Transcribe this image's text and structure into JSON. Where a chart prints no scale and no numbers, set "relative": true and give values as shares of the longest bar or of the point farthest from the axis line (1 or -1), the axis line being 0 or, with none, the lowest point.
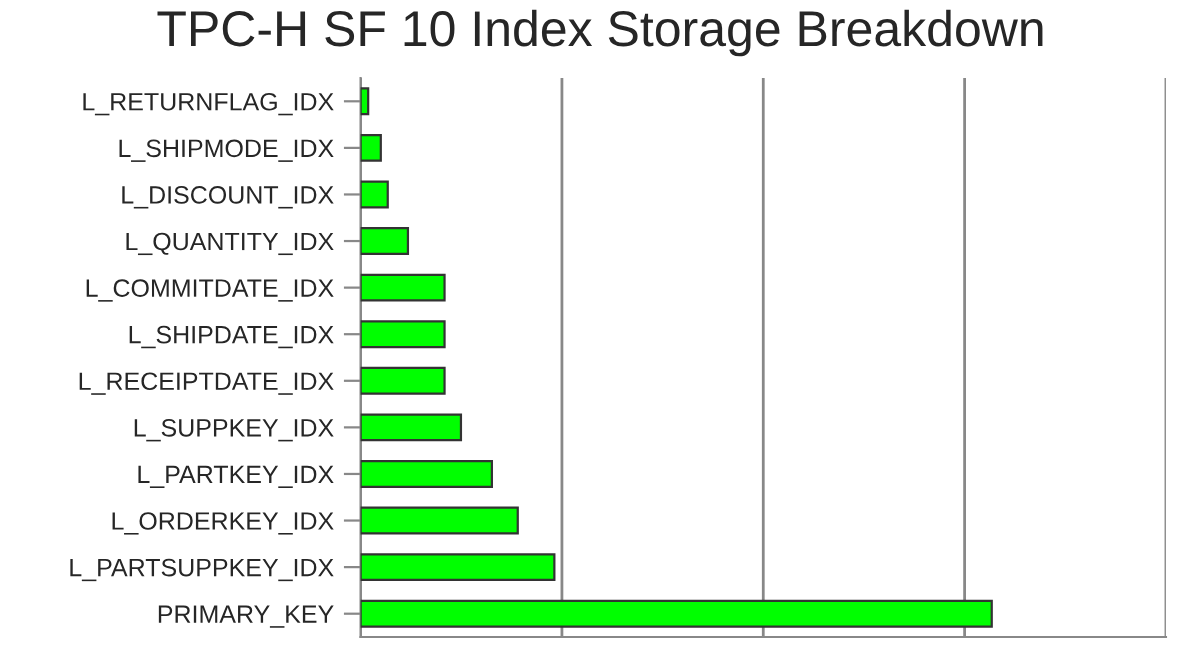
{
  "chart_data": {
    "type": "bar",
    "orientation": "horizontal",
    "relative": true,
    "title": "TPC-H SF 10 Index Storage Breakdown",
    "categories": [
      "L_RETURNFLAG_IDX",
      "L_SHIPMODE_IDX",
      "L_DISCOUNT_IDX",
      "L_QUANTITY_IDX",
      "L_COMMITDATE_IDX",
      "L_SHIPDATE_IDX",
      "L_RECEIPTDATE_IDX",
      "L_SUPPKEY_IDX",
      "L_PARTKEY_IDX",
      "L_ORDERKEY_IDX",
      "L_PARTSUPPKEY_IDX",
      "PRIMARY_KEY"
    ],
    "values": [
      0.012,
      0.032,
      0.043,
      0.075,
      0.133,
      0.133,
      0.133,
      0.159,
      0.208,
      0.249,
      0.307,
      1
    ],
    "color": "#00ff00",
    "grid": "x",
    "legend": false
  }
}
